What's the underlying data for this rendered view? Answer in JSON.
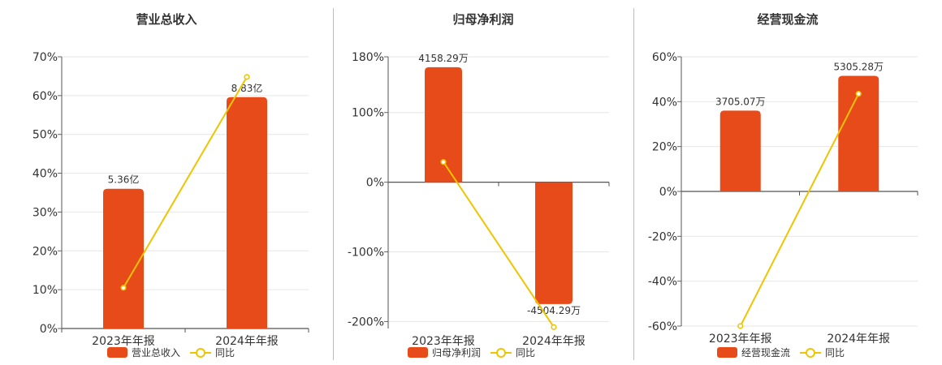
{
  "chart_data": [
    {
      "type": "bar",
      "title": "营业总收入",
      "categories": [
        "2023年年报",
        "2024年年报"
      ],
      "series": [
        {
          "name": "营业总收入",
          "values": [
            36,
            59.6
          ],
          "labels": [
            "5.36亿",
            "8.83亿"
          ],
          "color": "#e84b1a"
        },
        {
          "name": "同比",
          "type": "line",
          "values": [
            10.5,
            64.8
          ],
          "color": "#f0c400"
        }
      ],
      "yticks": [
        "70%",
        "60%",
        "50%",
        "40%",
        "30%",
        "20%",
        "10%",
        "0%"
      ],
      "ylim": [
        0,
        70
      ],
      "grid": true,
      "legend": "bottom"
    },
    {
      "type": "bar",
      "title": "归母净利润",
      "categories": [
        "2023年年报",
        "2024年年报"
      ],
      "series": [
        {
          "name": "归母净利润",
          "values": [
            165,
            -175
          ],
          "labels": [
            "4158.29万",
            "-4504.29万"
          ],
          "color": "#e84b1a"
        },
        {
          "name": "同比",
          "type": "line",
          "values": [
            29,
            -208
          ],
          "color": "#f0c400"
        }
      ],
      "yticks": [
        "180%",
        "100%",
        "0%",
        "-100%",
        "-200%"
      ],
      "ylim": [
        -210,
        180
      ],
      "grid": true,
      "legend": "bottom"
    },
    {
      "type": "bar",
      "title": "经营现金流",
      "categories": [
        "2023年年报",
        "2024年年报"
      ],
      "series": [
        {
          "name": "经营现金流",
          "values": [
            36,
            51.5
          ],
          "labels": [
            "3705.07万",
            "5305.28万"
          ],
          "color": "#e84b1a"
        },
        {
          "name": "同比",
          "type": "line",
          "values": [
            -60,
            43.5
          ],
          "color": "#f0c400"
        }
      ],
      "yticks": [
        "60%",
        "40%",
        "20%",
        "0%",
        "-20%",
        "-40%",
        "-60%"
      ],
      "ylim": [
        -60,
        60
      ],
      "grid": true,
      "legend": "bottom"
    }
  ]
}
